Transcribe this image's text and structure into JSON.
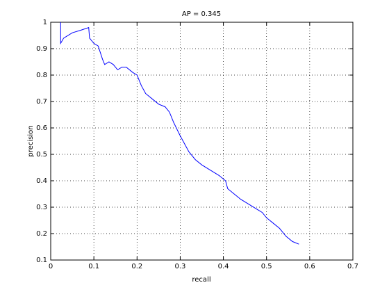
{
  "chart_data": {
    "type": "line",
    "title": "AP = 0.345",
    "xlabel": "recall",
    "ylabel": "precision",
    "x": [
      0.023,
      0.023,
      0.03,
      0.05,
      0.07,
      0.088,
      0.09,
      0.1,
      0.11,
      0.12,
      0.125,
      0.135,
      0.145,
      0.155,
      0.165,
      0.175,
      0.19,
      0.2,
      0.21,
      0.22,
      0.235,
      0.25,
      0.265,
      0.275,
      0.285,
      0.3,
      0.31,
      0.32,
      0.335,
      0.35,
      0.37,
      0.39,
      0.405,
      0.41,
      0.425,
      0.44,
      0.46,
      0.48,
      0.49,
      0.5,
      0.515,
      0.53,
      0.545,
      0.56,
      0.575
    ],
    "values": [
      1.0,
      0.92,
      0.94,
      0.96,
      0.97,
      0.98,
      0.94,
      0.92,
      0.91,
      0.86,
      0.84,
      0.85,
      0.84,
      0.82,
      0.83,
      0.83,
      0.81,
      0.8,
      0.76,
      0.73,
      0.71,
      0.69,
      0.68,
      0.66,
      0.62,
      0.57,
      0.54,
      0.51,
      0.48,
      0.46,
      0.44,
      0.42,
      0.4,
      0.37,
      0.35,
      0.33,
      0.31,
      0.29,
      0.28,
      0.26,
      0.24,
      0.22,
      0.19,
      0.17,
      0.16
    ],
    "color": "#0000ff",
    "xlim": [
      0,
      0.7
    ],
    "xticks": [
      0,
      0.1,
      0.2,
      0.3,
      0.4,
      0.5,
      0.6,
      0.7
    ],
    "ylim": [
      0.1,
      1
    ],
    "yticks": [
      0.1,
      0.2,
      0.3,
      0.4,
      0.5,
      0.6,
      0.7,
      0.8,
      0.9,
      1
    ],
    "grid": true
  }
}
